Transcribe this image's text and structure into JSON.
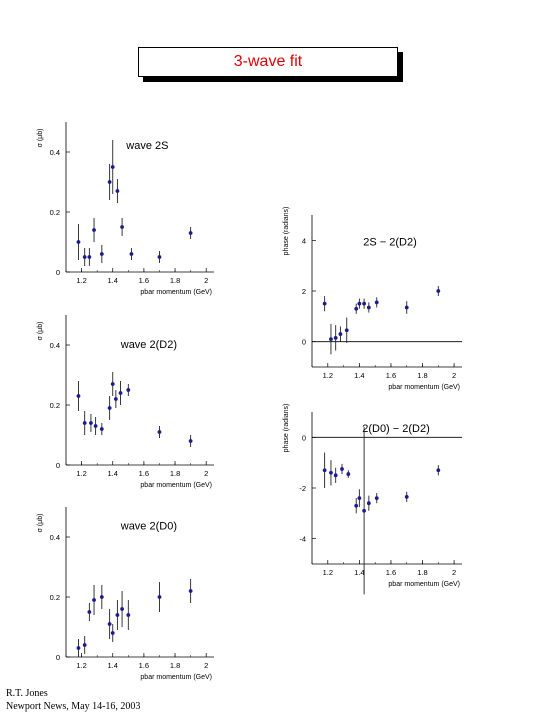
{
  "title": "3-wave fit",
  "footer": {
    "line1": "R.T. Jones",
    "line2": "Newport News, May 14-16, 2003"
  },
  "colors": {
    "point": "#1c1c8c",
    "axis": "#000000",
    "title": "#e00000"
  },
  "chart_data": [
    {
      "type": "scatter",
      "label": "wave 2S",
      "xlabel": "pbar momentum (GeV)",
      "ylabel": "σ (μb)",
      "xlim": [
        1.1,
        2.05
      ],
      "ylim": [
        0,
        0.5
      ],
      "xticks": [
        "1.2",
        "1.4",
        "1.6",
        "1.8",
        "2"
      ],
      "yticks": [
        "0",
        "0.2",
        "0.4"
      ],
      "zero_line": false,
      "points": [
        {
          "x": 1.18,
          "y": 0.1,
          "err": 0.06
        },
        {
          "x": 1.22,
          "y": 0.05,
          "err": 0.03
        },
        {
          "x": 1.25,
          "y": 0.05,
          "err": 0.03
        },
        {
          "x": 1.28,
          "y": 0.14,
          "err": 0.04
        },
        {
          "x": 1.33,
          "y": 0.06,
          "err": 0.03
        },
        {
          "x": 1.38,
          "y": 0.3,
          "err": 0.06
        },
        {
          "x": 1.4,
          "y": 0.35,
          "err": 0.09
        },
        {
          "x": 1.43,
          "y": 0.27,
          "err": 0.04
        },
        {
          "x": 1.46,
          "y": 0.15,
          "err": 0.03
        },
        {
          "x": 1.52,
          "y": 0.06,
          "err": 0.02
        },
        {
          "x": 1.7,
          "y": 0.05,
          "err": 0.02
        },
        {
          "x": 1.9,
          "y": 0.13,
          "err": 0.02
        }
      ]
    },
    {
      "type": "scatter",
      "label": "wave 2(D2)",
      "xlabel": "pbar momentum (GeV)",
      "ylabel": "σ (μb)",
      "xlim": [
        1.1,
        2.05
      ],
      "ylim": [
        0,
        0.5
      ],
      "xticks": [
        "1.2",
        "1.4",
        "1.6",
        "1.8",
        "2"
      ],
      "yticks": [
        "0",
        "0.2",
        "0.4"
      ],
      "zero_line": false,
      "points": [
        {
          "x": 1.18,
          "y": 0.23,
          "err": 0.05
        },
        {
          "x": 1.22,
          "y": 0.14,
          "err": 0.04
        },
        {
          "x": 1.26,
          "y": 0.14,
          "err": 0.03
        },
        {
          "x": 1.29,
          "y": 0.13,
          "err": 0.03
        },
        {
          "x": 1.33,
          "y": 0.12,
          "err": 0.02
        },
        {
          "x": 1.38,
          "y": 0.19,
          "err": 0.04
        },
        {
          "x": 1.4,
          "y": 0.27,
          "err": 0.04
        },
        {
          "x": 1.42,
          "y": 0.22,
          "err": 0.03
        },
        {
          "x": 1.45,
          "y": 0.24,
          "err": 0.04
        },
        {
          "x": 1.5,
          "y": 0.25,
          "err": 0.02
        },
        {
          "x": 1.7,
          "y": 0.11,
          "err": 0.02
        },
        {
          "x": 1.9,
          "y": 0.08,
          "err": 0.02
        }
      ]
    },
    {
      "type": "scatter",
      "label": "wave 2(D0)",
      "xlabel": "pbar momentum (GeV)",
      "ylabel": "σ (μb)",
      "xlim": [
        1.1,
        2.05
      ],
      "ylim": [
        0,
        0.5
      ],
      "xticks": [
        "1.2",
        "1.4",
        "1.6",
        "1.8",
        "2"
      ],
      "yticks": [
        "0",
        "0.2",
        "0.4"
      ],
      "zero_line": false,
      "points": [
        {
          "x": 1.18,
          "y": 0.03,
          "err": 0.03
        },
        {
          "x": 1.22,
          "y": 0.04,
          "err": 0.03
        },
        {
          "x": 1.25,
          "y": 0.15,
          "err": 0.03
        },
        {
          "x": 1.28,
          "y": 0.19,
          "err": 0.05
        },
        {
          "x": 1.33,
          "y": 0.2,
          "err": 0.04
        },
        {
          "x": 1.38,
          "y": 0.11,
          "err": 0.05
        },
        {
          "x": 1.4,
          "y": 0.08,
          "err": 0.03
        },
        {
          "x": 1.43,
          "y": 0.14,
          "err": 0.05
        },
        {
          "x": 1.46,
          "y": 0.16,
          "err": 0.06
        },
        {
          "x": 1.5,
          "y": 0.14,
          "err": 0.05
        },
        {
          "x": 1.7,
          "y": 0.2,
          "err": 0.05
        },
        {
          "x": 1.9,
          "y": 0.22,
          "err": 0.04
        }
      ]
    },
    {
      "type": "scatter",
      "label": "2S − 2(D2)",
      "xlabel": "pbar momentum (GeV)",
      "ylabel": "phase (radians)",
      "xlim": [
        1.1,
        2.05
      ],
      "ylim": [
        -1.0,
        5.0
      ],
      "xticks": [
        "1.2",
        "1.4",
        "1.6",
        "1.8",
        "2"
      ],
      "yticks": [
        "0",
        "2",
        "4"
      ],
      "zero_line": true,
      "points": [
        {
          "x": 1.18,
          "y": 1.5,
          "err": 0.3
        },
        {
          "x": 1.22,
          "y": 0.1,
          "err": 0.6
        },
        {
          "x": 1.25,
          "y": 0.15,
          "err": 0.5
        },
        {
          "x": 1.28,
          "y": 0.3,
          "err": 0.3
        },
        {
          "x": 1.32,
          "y": 0.45,
          "err": 0.5
        },
        {
          "x": 1.38,
          "y": 1.3,
          "err": 0.2
        },
        {
          "x": 1.4,
          "y": 1.5,
          "err": 0.2
        },
        {
          "x": 1.43,
          "y": 1.5,
          "err": 0.2
        },
        {
          "x": 1.46,
          "y": 1.35,
          "err": 0.2
        },
        {
          "x": 1.51,
          "y": 1.55,
          "err": 0.2
        },
        {
          "x": 1.7,
          "y": 1.35,
          "err": 0.25
        },
        {
          "x": 1.9,
          "y": 2.0,
          "err": 0.2
        }
      ]
    },
    {
      "type": "scatter",
      "label": "2(D0) − 2(D2)",
      "xlabel": "pbar momentum (GeV)",
      "ylabel": "phase (radians)",
      "xlim": [
        1.1,
        2.05
      ],
      "ylim": [
        -5.0,
        1.0
      ],
      "xticks": [
        "1.2",
        "1.4",
        "1.6",
        "1.8",
        "2"
      ],
      "yticks": [
        "0",
        "-2",
        "-4"
      ],
      "zero_line": true,
      "points": [
        {
          "x": 1.18,
          "y": -1.3,
          "err": 0.7
        },
        {
          "x": 1.22,
          "y": -1.4,
          "err": 0.5
        },
        {
          "x": 1.25,
          "y": -1.5,
          "err": 0.3
        },
        {
          "x": 1.29,
          "y": -1.25,
          "err": 0.2
        },
        {
          "x": 1.33,
          "y": -1.45,
          "err": 0.15
        },
        {
          "x": 1.38,
          "y": -2.7,
          "err": 0.3
        },
        {
          "x": 1.4,
          "y": -2.4,
          "err": 0.35
        },
        {
          "x": 1.43,
          "y": -2.9,
          "err": 3.3
        },
        {
          "x": 1.46,
          "y": -2.6,
          "err": 0.3
        },
        {
          "x": 1.51,
          "y": -2.4,
          "err": 0.2
        },
        {
          "x": 1.7,
          "y": -2.35,
          "err": 0.2
        },
        {
          "x": 1.9,
          "y": -1.3,
          "err": 0.2
        }
      ]
    }
  ]
}
